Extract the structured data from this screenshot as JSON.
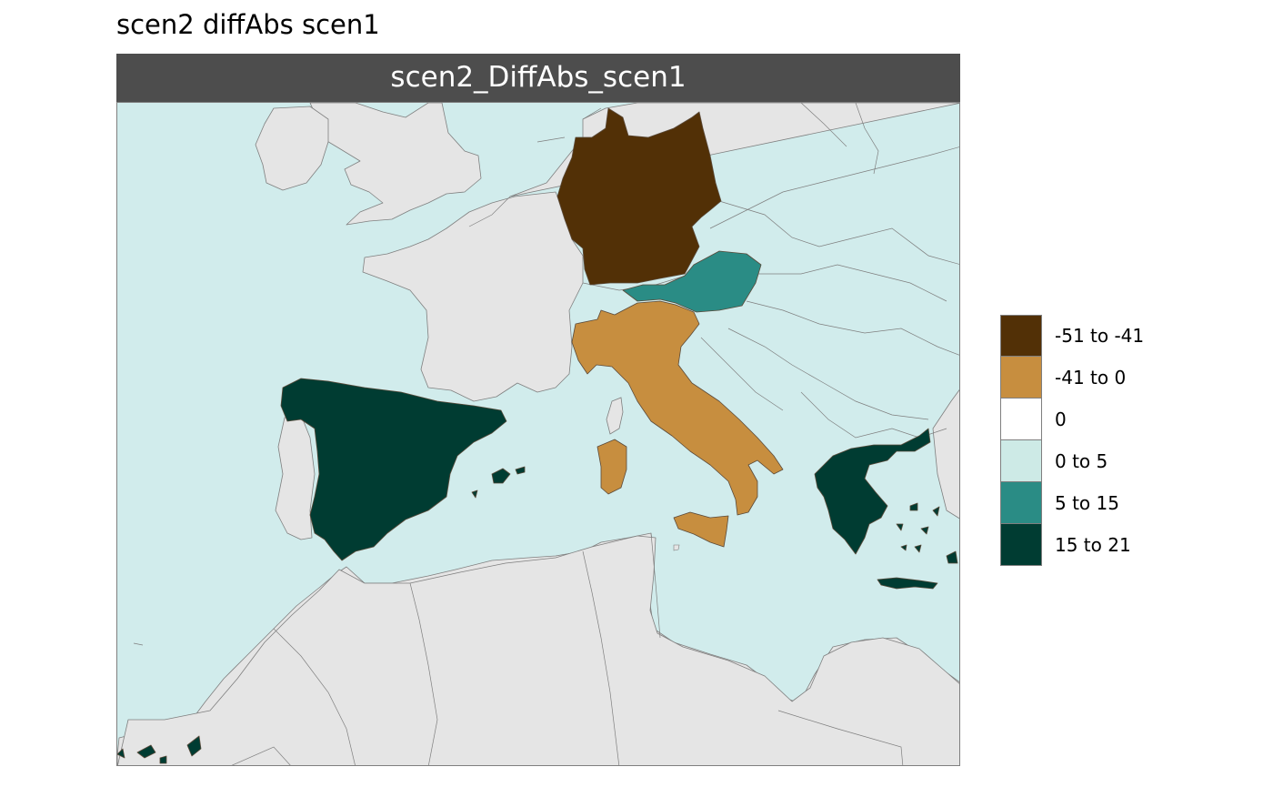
{
  "title": "scen2 diffAbs scen1",
  "panel": {
    "strip_label": "scen2_DiffAbs_scen1"
  },
  "map": {
    "sea_color": "#d1ecec",
    "land_color": "#e5e5e5",
    "border_color": "#7f7f7f",
    "regions": [
      {
        "name": "Germany",
        "class": "-51 to -41",
        "color": "#523006"
      },
      {
        "name": "Italy",
        "class": "-41 to 0",
        "color": "#c78e3f"
      },
      {
        "name": "Austria",
        "class": "5 to 15",
        "color": "#2a8c85"
      },
      {
        "name": "Spain",
        "class": "15 to 21",
        "color": "#003c32"
      },
      {
        "name": "Greece",
        "class": "15 to 21",
        "color": "#003c32"
      }
    ]
  },
  "legend": {
    "items": [
      {
        "label": "-51 to -41",
        "color": "#523006"
      },
      {
        "label": "-41 to 0",
        "color": "#c78e3f"
      },
      {
        "label": "0",
        "color": "#ffffff"
      },
      {
        "label": "0 to 5",
        "color": "#cdeae6"
      },
      {
        "label": "5 to 15",
        "color": "#2a8c85"
      },
      {
        "label": "15 to 21",
        "color": "#003c32"
      }
    ]
  }
}
